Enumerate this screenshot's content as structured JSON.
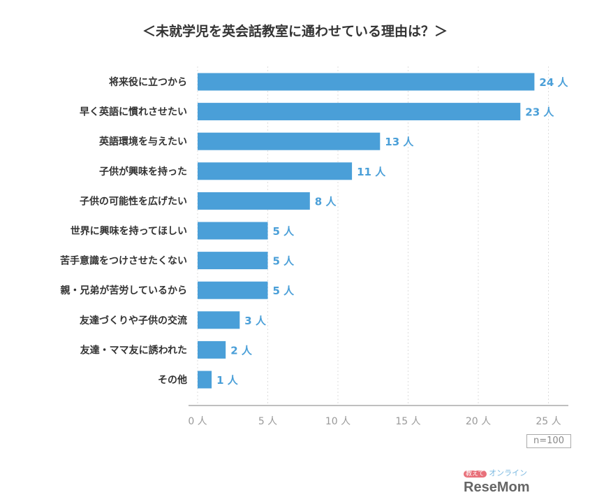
{
  "chart_data": {
    "type": "bar",
    "orientation": "horizontal",
    "title": "＜未就学児を英会話教室に通わせている理由は？＞",
    "categories": [
      "将来役に立つから",
      "早く英語に慣れさせたい",
      "英語環境を与えたい",
      "子供が興味を持った",
      "子供の可能性を広げたい",
      "世界に興味を持ってほしい",
      "苦手意識をつけさせたくない",
      "親・兄弟が苦労しているから",
      "友達づくりや子供の交流",
      "友達・ママ友に誘われた",
      "その他"
    ],
    "values": [
      24,
      23,
      13,
      11,
      8,
      5,
      5,
      5,
      3,
      2,
      1
    ],
    "unit": "人",
    "xlim": [
      0,
      26.5
    ],
    "xticks": [
      0,
      5,
      10,
      15,
      20,
      25
    ],
    "xtick_labels": [
      "0 人",
      "5 人",
      "10 人",
      "15 人",
      "20 人",
      "25 人"
    ],
    "grid": true,
    "bar_color": "#4a9fd8",
    "label_color": "#4a9fd8",
    "note": "n=100"
  },
  "logo": {
    "prefix": "教えて",
    "mid": "オンライン",
    "brand": "ReseMom"
  }
}
